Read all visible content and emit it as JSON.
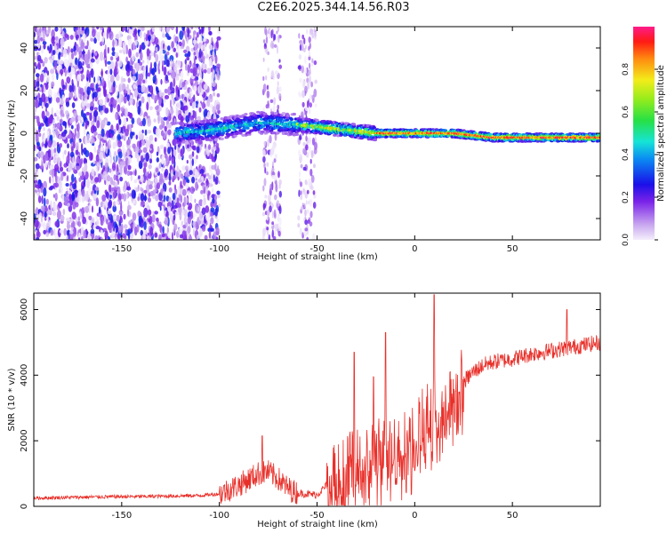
{
  "title": "C2E6.2025.344.14.56.R03",
  "chart_data": [
    {
      "type": "heatmap",
      "title": "C2E6.2025.344.14.56.R03",
      "xlabel": "Height of straight line (km)",
      "ylabel": "Frequency (Hz)",
      "xlim": [
        -195,
        95
      ],
      "ylim": [
        -50,
        50
      ],
      "xticks": [
        -150,
        -100,
        -50,
        0,
        50
      ],
      "yticks": [
        -40,
        -20,
        0,
        20,
        40
      ],
      "colorbar": {
        "label": "Normalized spectral amplitude",
        "range": [
          0,
          1
        ],
        "ticks": [
          "0.0",
          "0.2",
          "0.4",
          "0.6",
          "0.8"
        ],
        "colormap": "rainbow (light violet to red/pink)"
      },
      "noise_region": {
        "x_range": [
          -195,
          -100
        ],
        "description": "broadband scattered low-amplitude energy"
      },
      "noise_stripes_x": [
        -73,
        -55
      ],
      "ridge": [
        {
          "x": -120,
          "f": 0
        },
        {
          "x": -100,
          "f": 2
        },
        {
          "x": -80,
          "f": 5
        },
        {
          "x": -60,
          "f": 4
        },
        {
          "x": -40,
          "f": 2
        },
        {
          "x": -20,
          "f": 0
        },
        {
          "x": 0,
          "f": 0
        },
        {
          "x": 20,
          "f": 0
        },
        {
          "x": 40,
          "f": -2
        },
        {
          "x": 60,
          "f": -2
        },
        {
          "x": 94,
          "f": -2
        }
      ]
    },
    {
      "type": "line",
      "xlabel": "Height of straight line (km)",
      "ylabel": "SNR (10 * v/v)",
      "xlim": [
        -195,
        95
      ],
      "ylim": [
        0,
        6500
      ],
      "xticks": [
        -150,
        -100,
        -50,
        0,
        50
      ],
      "yticks": [
        0,
        2000,
        4000,
        6000
      ],
      "color": "#e8302a",
      "series": [
        {
          "name": "SNR",
          "x": [
            -195,
            -180,
            -160,
            -140,
            -120,
            -110,
            -100,
            -90,
            -80,
            -75,
            -70,
            -65,
            -60,
            -55,
            -50,
            -45,
            -40,
            -35,
            -30,
            -25,
            -20,
            -15,
            -10,
            -5,
            0,
            5,
            10,
            15,
            20,
            25,
            30,
            35,
            40,
            50,
            60,
            70,
            80,
            90,
            95
          ],
          "y": [
            250,
            270,
            290,
            300,
            320,
            330,
            380,
            650,
            1000,
            1050,
            850,
            550,
            400,
            380,
            350,
            650,
            900,
            1100,
            1350,
            1500,
            1600,
            1750,
            1850,
            1900,
            2100,
            2600,
            2900,
            3200,
            3500,
            3800,
            4100,
            4300,
            4400,
            4500,
            4650,
            4750,
            4850,
            4950,
            5000
          ]
        }
      ],
      "spikes": [
        {
          "x": -78,
          "y": 2150
        },
        {
          "x": -31,
          "y": 4700
        },
        {
          "x": -21,
          "y": 3950
        },
        {
          "x": -15,
          "y": 5300
        },
        {
          "x": 10,
          "y": 6450
        },
        {
          "x": 78,
          "y": 6000
        }
      ]
    }
  ]
}
